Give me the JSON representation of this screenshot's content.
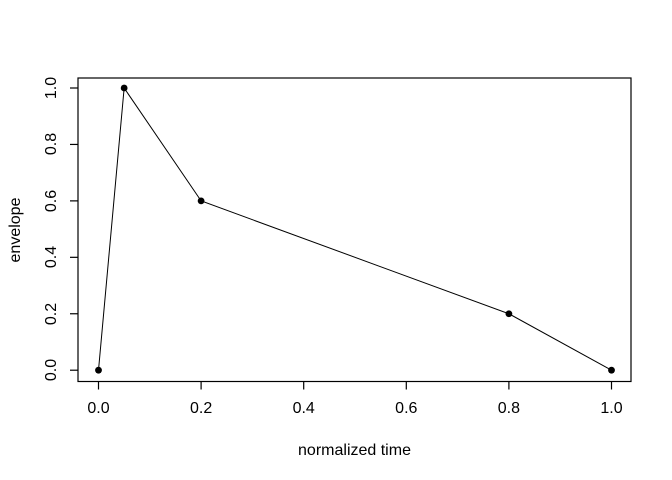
{
  "canvas": {
    "background_color": "#ffffff",
    "foreground_color": "#000000"
  },
  "chart_data": {
    "type": "line",
    "title": "",
    "xlabel": "normalized time",
    "ylabel": "envelope",
    "points": [
      {
        "x": 0.0,
        "y": 0.0
      },
      {
        "x": 0.05,
        "y": 1.0
      },
      {
        "x": 0.2,
        "y": 0.6
      },
      {
        "x": 0.8,
        "y": 0.2
      },
      {
        "x": 1.0,
        "y": 0.0
      }
    ],
    "xlim": [
      0,
      1
    ],
    "ylim": [
      0,
      1
    ],
    "x_ticks": [
      0.0,
      0.2,
      0.4,
      0.6,
      0.8,
      1.0
    ],
    "y_ticks": [
      0.0,
      0.2,
      0.4,
      0.6,
      0.8,
      1.0
    ],
    "x_tick_labels": [
      "0.0",
      "0.2",
      "0.4",
      "0.6",
      "0.8",
      "1.0"
    ],
    "y_tick_labels": [
      "0.0",
      "0.2",
      "0.4",
      "0.6",
      "0.8",
      "1.0"
    ],
    "marker": "filled-circle",
    "line_color": "#000000",
    "point_color": "#000000",
    "axis_color": "#000000",
    "grid": false,
    "legend": null
  }
}
